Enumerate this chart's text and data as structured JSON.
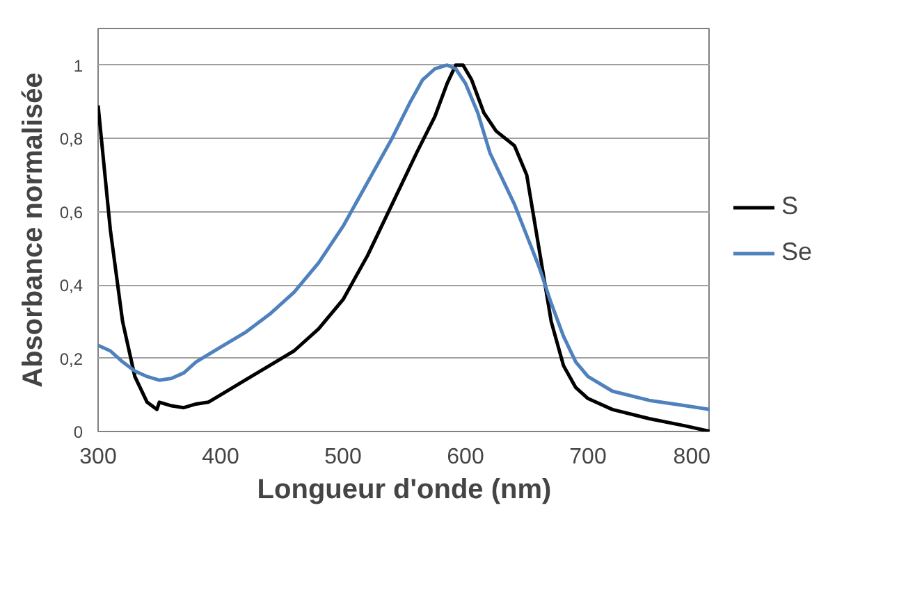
{
  "chart_data": {
    "type": "line",
    "xlabel": "Longueur d'onde (nm)",
    "ylabel": "Absorbance normalisée",
    "xlim": [
      300,
      800
    ],
    "xticks": [
      300,
      400,
      500,
      600,
      700,
      800
    ],
    "ylim": [
      0,
      1.1
    ],
    "yticks": [
      0,
      {
        "value": 0.2,
        "label": "0,2"
      },
      {
        "value": 0.4,
        "label": "0,4"
      },
      {
        "value": 0.6,
        "label": "0,6"
      },
      {
        "value": 0.8,
        "label": "0,8"
      },
      1
    ],
    "grid": "y",
    "legend": "right",
    "marker": "none",
    "line_style": "solid",
    "series": [
      {
        "name": "S",
        "color": "#000000",
        "x": [
          300,
          310,
          320,
          330,
          340,
          348,
          350,
          360,
          370,
          380,
          390,
          400,
          420,
          440,
          460,
          480,
          500,
          520,
          540,
          560,
          575,
          585,
          592,
          598,
          605,
          615,
          625,
          640,
          650,
          660,
          670,
          680,
          690,
          700,
          720,
          750,
          780,
          800
        ],
        "values": [
          0.89,
          0.55,
          0.3,
          0.15,
          0.08,
          0.06,
          0.08,
          0.07,
          0.065,
          0.075,
          0.08,
          0.1,
          0.14,
          0.18,
          0.22,
          0.28,
          0.36,
          0.48,
          0.62,
          0.76,
          0.86,
          0.95,
          1.0,
          1.0,
          0.96,
          0.87,
          0.82,
          0.78,
          0.7,
          0.5,
          0.3,
          0.18,
          0.12,
          0.09,
          0.06,
          0.035,
          0.015,
          0.0
        ]
      },
      {
        "name": "Se",
        "color": "#4f81bd",
        "x": [
          300,
          310,
          320,
          330,
          340,
          350,
          360,
          370,
          380,
          400,
          420,
          440,
          460,
          480,
          500,
          520,
          540,
          555,
          565,
          575,
          585,
          592,
          600,
          610,
          620,
          640,
          660,
          670,
          680,
          690,
          700,
          720,
          750,
          780,
          800
        ],
        "values": [
          0.235,
          0.22,
          0.19,
          0.165,
          0.15,
          0.14,
          0.145,
          0.16,
          0.19,
          0.23,
          0.27,
          0.32,
          0.38,
          0.46,
          0.56,
          0.68,
          0.8,
          0.9,
          0.96,
          0.99,
          1.0,
          0.99,
          0.95,
          0.87,
          0.76,
          0.62,
          0.45,
          0.35,
          0.26,
          0.19,
          0.15,
          0.11,
          0.085,
          0.07,
          0.06
        ]
      }
    ]
  }
}
